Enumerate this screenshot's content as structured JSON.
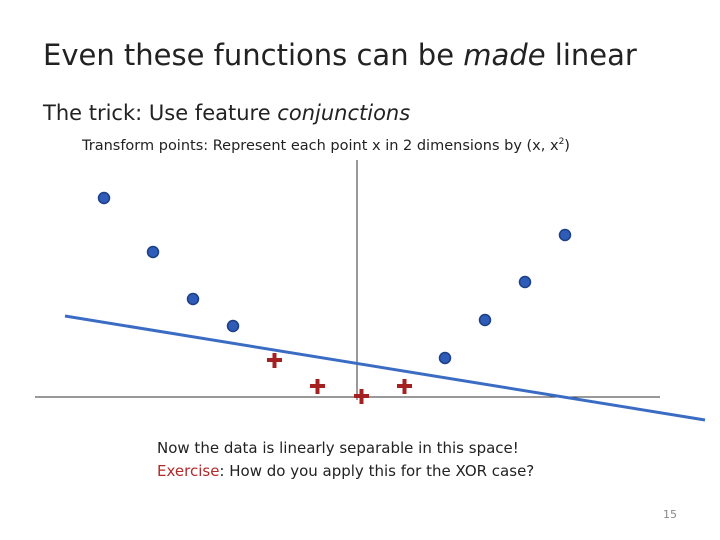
{
  "title": [
    "Even these functions can be ",
    "made",
    " linear"
  ],
  "subtitle": [
    "The trick: Use feature ",
    "conjunctions"
  ],
  "bullet": [
    "Transform points: Represent each point x in 2 dimensions by (x, x",
    "2",
    ")"
  ],
  "note": {
    "line1": "Now the data is linearly separable in this space!",
    "exercise": "Exercise",
    "line2": ": How do you apply this for the XOR case?"
  },
  "page_number": "15"
}
